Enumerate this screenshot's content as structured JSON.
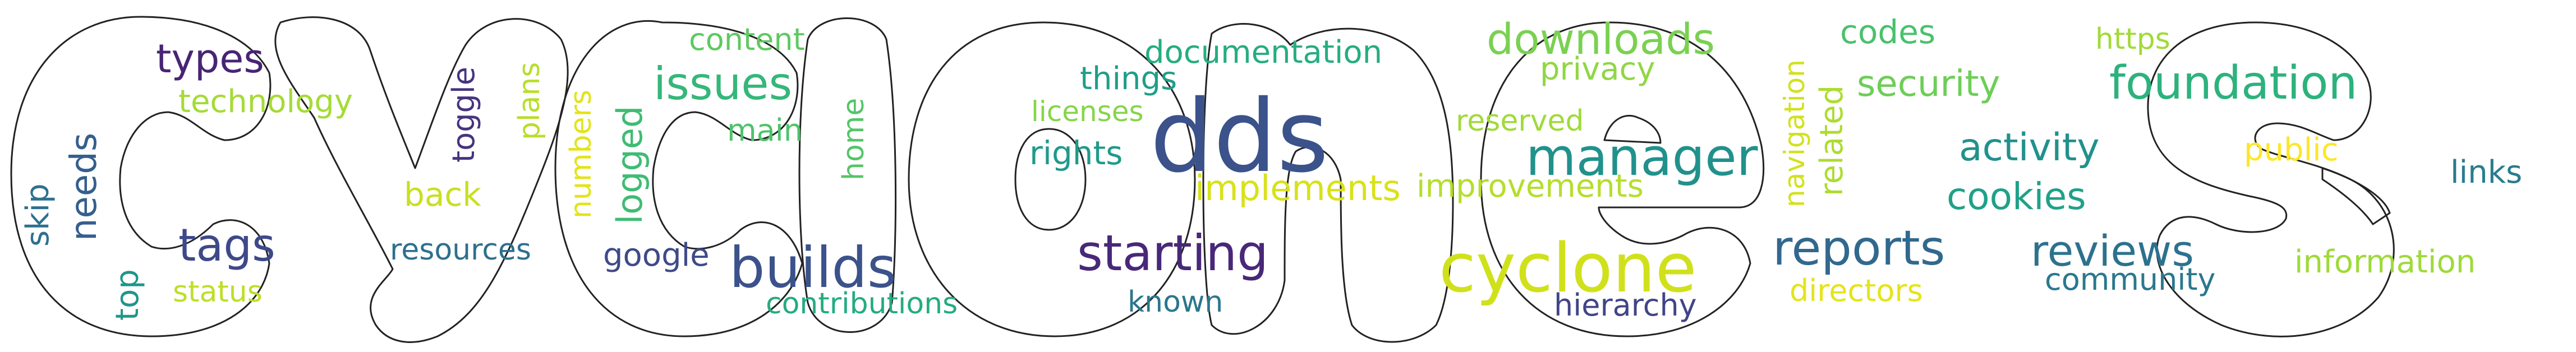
{
  "words": [
    {
      "text": "dds",
      "color": "#3b528b"
    },
    {
      "text": "cyclone",
      "color": "#d0e11c"
    },
    {
      "text": "foundation",
      "color": "#2db27d"
    },
    {
      "text": "builds",
      "color": "#3b528b"
    },
    {
      "text": "starting",
      "color": "#482878"
    },
    {
      "text": "manager",
      "color": "#21918c"
    },
    {
      "text": "reports",
      "color": "#31688e"
    },
    {
      "text": "downloads",
      "color": "#7ad151"
    },
    {
      "text": "reviews",
      "color": "#2c728e"
    },
    {
      "text": "issues",
      "color": "#35b779"
    },
    {
      "text": "tags",
      "color": "#3e4989"
    },
    {
      "text": "types",
      "color": "#482475"
    },
    {
      "text": "activity",
      "color": "#21918c"
    },
    {
      "text": "cookies",
      "color": "#1fa187"
    },
    {
      "text": "security",
      "color": "#6ece58"
    },
    {
      "text": "implements",
      "color": "#d8e219"
    },
    {
      "text": "improvements",
      "color": "#b5de2b"
    },
    {
      "text": "information",
      "color": "#9fda3a"
    },
    {
      "text": "documentation",
      "color": "#26ad81"
    },
    {
      "text": "technology",
      "color": "#a5db36"
    },
    {
      "text": "privacy",
      "color": "#90d743"
    },
    {
      "text": "things",
      "color": "#1f9e89"
    },
    {
      "text": "hierarchy",
      "color": "#414487"
    },
    {
      "text": "community",
      "color": "#2a788e"
    },
    {
      "text": "reserved",
      "color": "#a0da39"
    },
    {
      "text": "rights",
      "color": "#1f9a8a"
    },
    {
      "text": "back",
      "color": "#c8e020"
    },
    {
      "text": "google",
      "color": "#3e4a89"
    },
    {
      "text": "public",
      "color": "#fde725"
    },
    {
      "text": "links",
      "color": "#287c8e"
    },
    {
      "text": "directors",
      "color": "#e5e419"
    },
    {
      "text": "codes",
      "color": "#4ac16d"
    },
    {
      "text": "content",
      "color": "#5ec962"
    },
    {
      "text": "main",
      "color": "#4ec36b"
    },
    {
      "text": "resources",
      "color": "#2e6f8e"
    },
    {
      "text": "contributions",
      "color": "#25ab82"
    },
    {
      "text": "https",
      "color": "#a2da37"
    },
    {
      "text": "licenses",
      "color": "#86d549"
    },
    {
      "text": "status",
      "color": "#bddf26"
    },
    {
      "text": "known",
      "color": "#2a768e"
    },
    {
      "text": "needs",
      "color": "#355f8d"
    },
    {
      "text": "top",
      "color": "#1f968b"
    },
    {
      "text": "skip",
      "color": "#2d708e"
    },
    {
      "text": "logged",
      "color": "#3fbc73"
    },
    {
      "text": "toggle",
      "color": "#46337f"
    },
    {
      "text": "plans",
      "color": "#b8de29"
    },
    {
      "text": "numbers",
      "color": "#e2e418"
    },
    {
      "text": "home",
      "color": "#54c568"
    },
    {
      "text": "navigation",
      "color": "#d2e21b"
    },
    {
      "text": "related",
      "color": "#addc30"
    }
  ]
}
